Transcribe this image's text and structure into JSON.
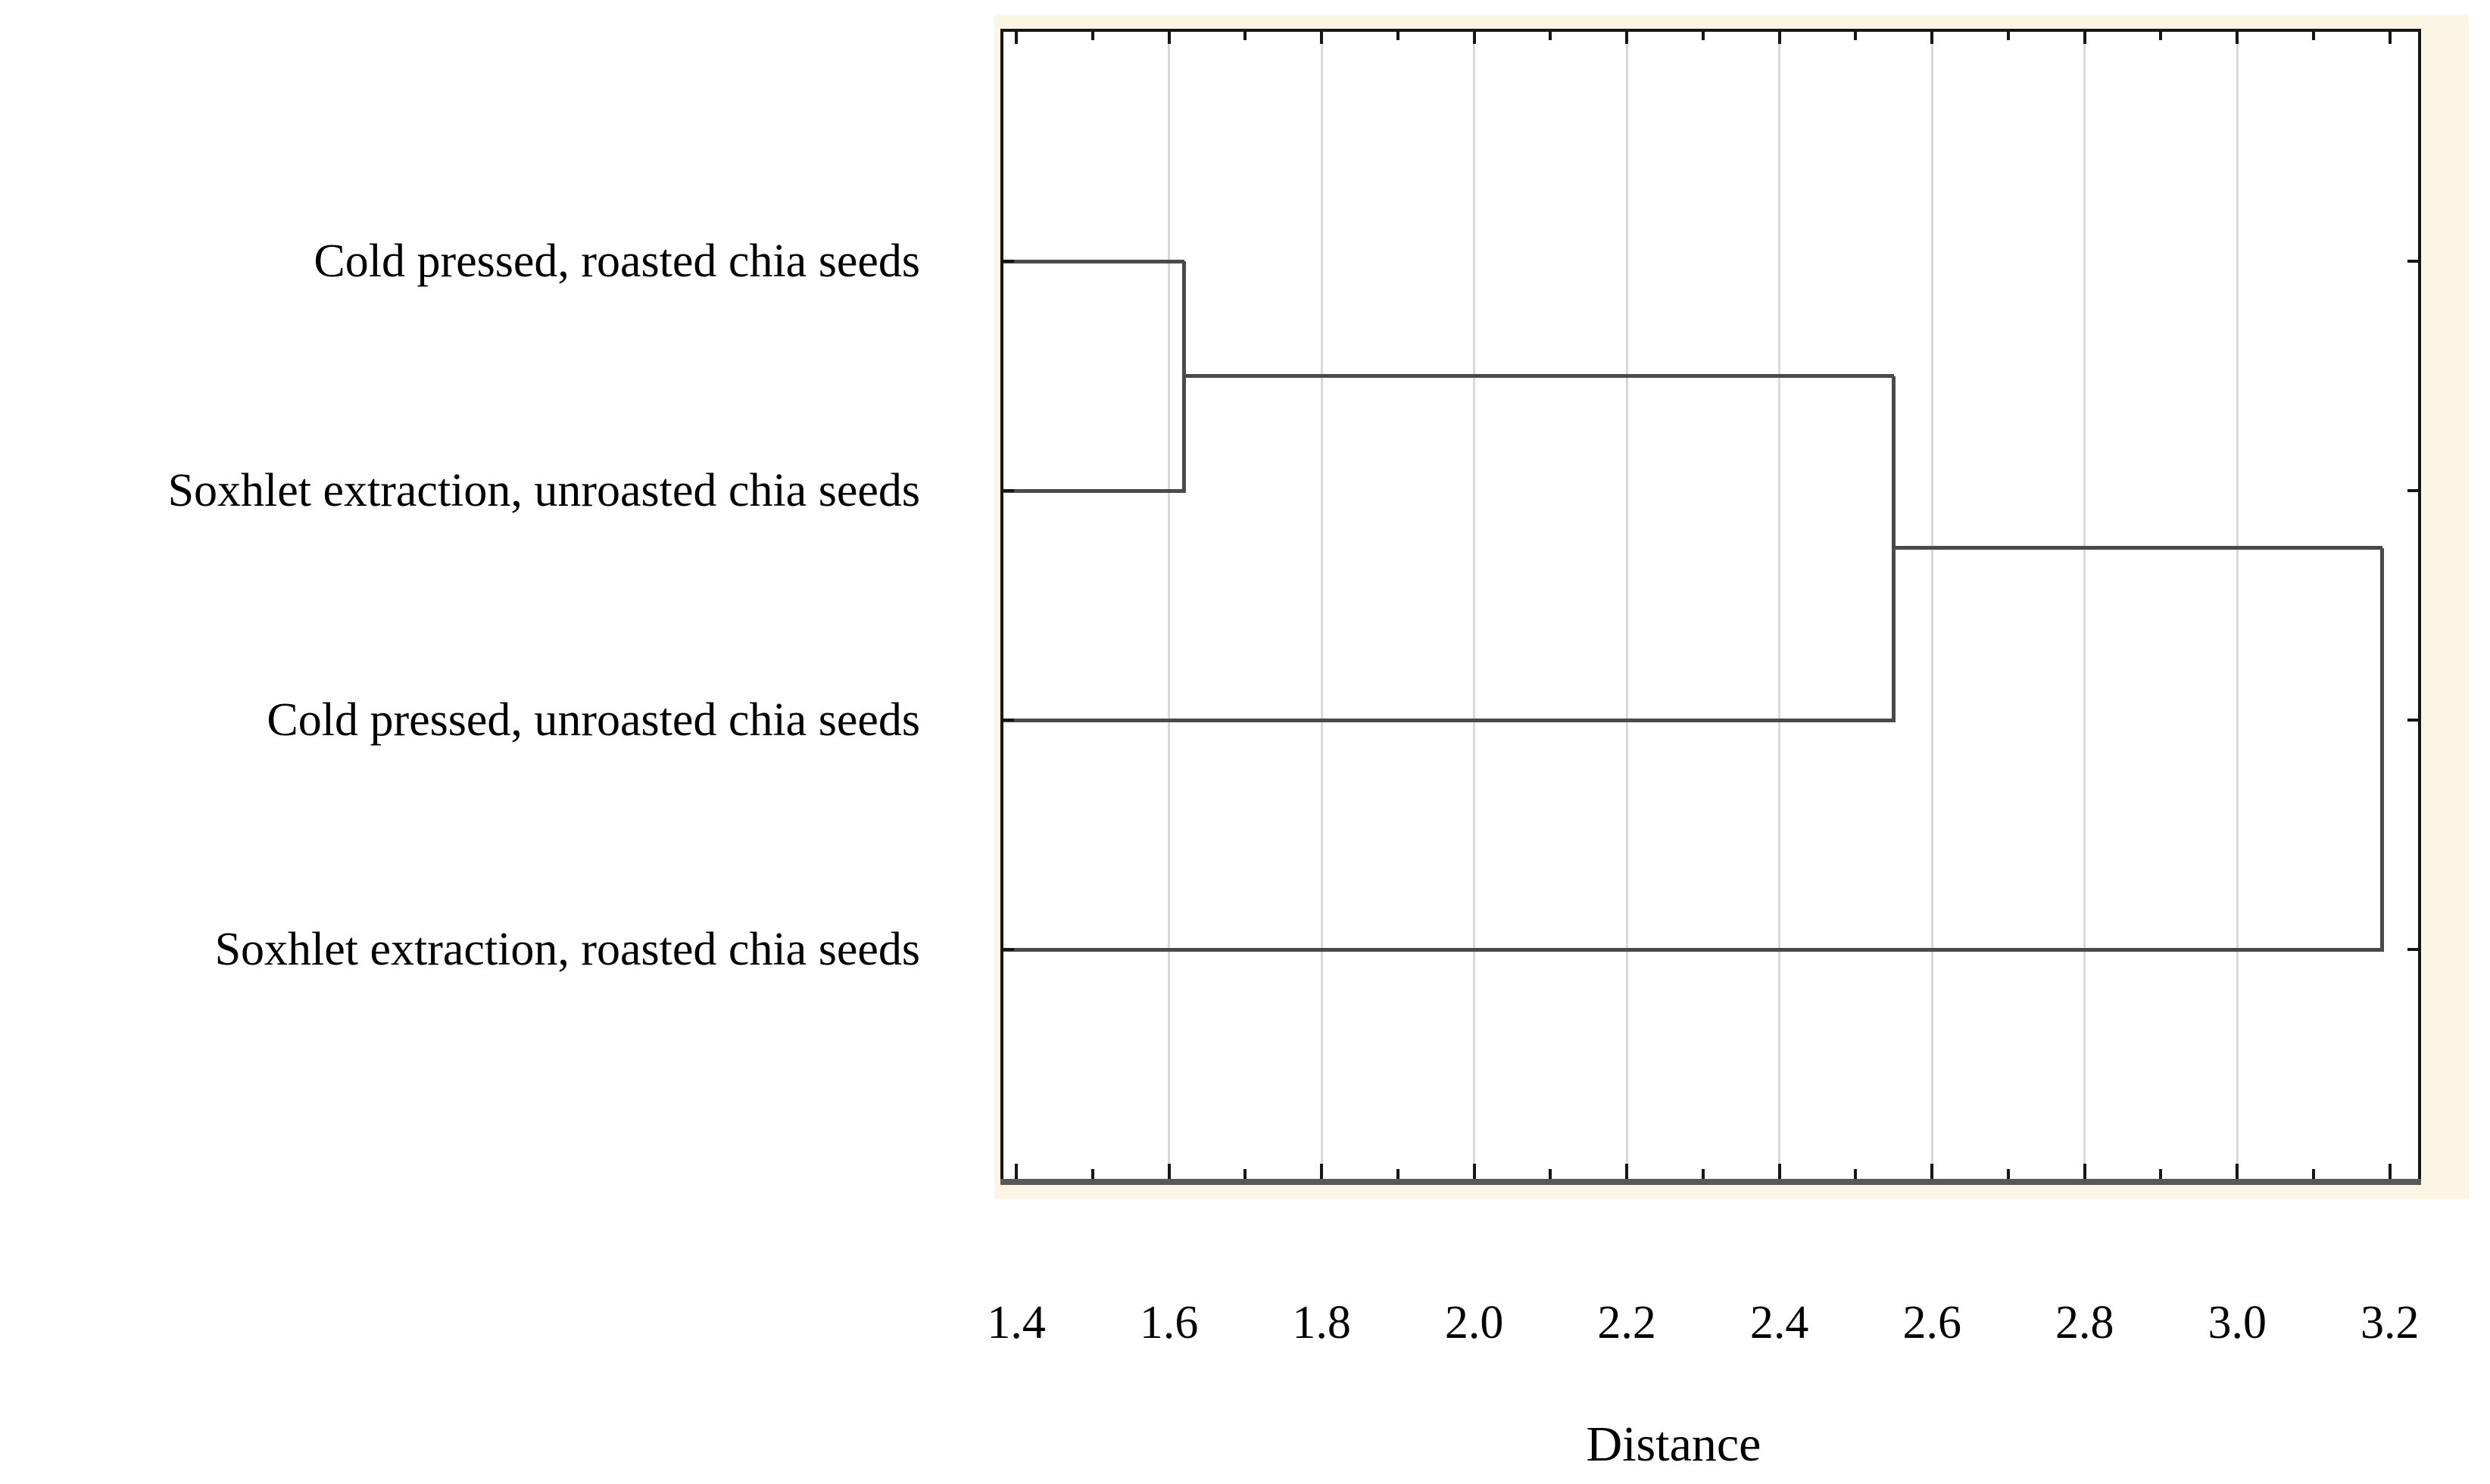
{
  "chart_data": {
    "type": "dendrogram",
    "orientation": "horizontal",
    "title": "",
    "xlabel": "Distance",
    "ylabel": "",
    "leaves": [
      "Cold pressed, roasted chia seeds",
      "Soxhlet extraction, unroasted chia seeds",
      "Cold pressed, unroasted chia seeds",
      "Soxhlet extraction, roasted chia seeds"
    ],
    "merges": [
      {
        "a": "leaf-0",
        "b": "leaf-1",
        "distance": 1.62
      },
      {
        "a": "merge-0",
        "b": "leaf-2",
        "distance": 2.55
      },
      {
        "a": "merge-1",
        "b": "leaf-3",
        "distance": 3.19
      }
    ],
    "xlim": [
      1.383,
      3.237
    ],
    "x_major_ticks": [
      1.4,
      1.6,
      1.8,
      2.0,
      2.2,
      2.4,
      2.6,
      2.8,
      3.0,
      3.2
    ],
    "x_tick_labels": [
      "1.4",
      "1.6",
      "1.8",
      "2.0",
      "2.2",
      "2.4",
      "2.6",
      "2.8",
      "3.0",
      "3.2"
    ],
    "x_minor_tick_step": 0.1,
    "gridlines_vertical_at": [
      1.6,
      1.8,
      2.0,
      2.2,
      2.4,
      2.6,
      2.8,
      3.0
    ],
    "legend": null,
    "colors": {
      "page_background": "#ffffff",
      "frame_mat_background": "#fbf6e3",
      "plot_background": "#ffffff",
      "frame_border": "#161616",
      "bottom_border": "#59595b",
      "gridline": "#d9d9d9",
      "dendrogram_line": "#4a4a4a",
      "text": "#000000"
    }
  }
}
